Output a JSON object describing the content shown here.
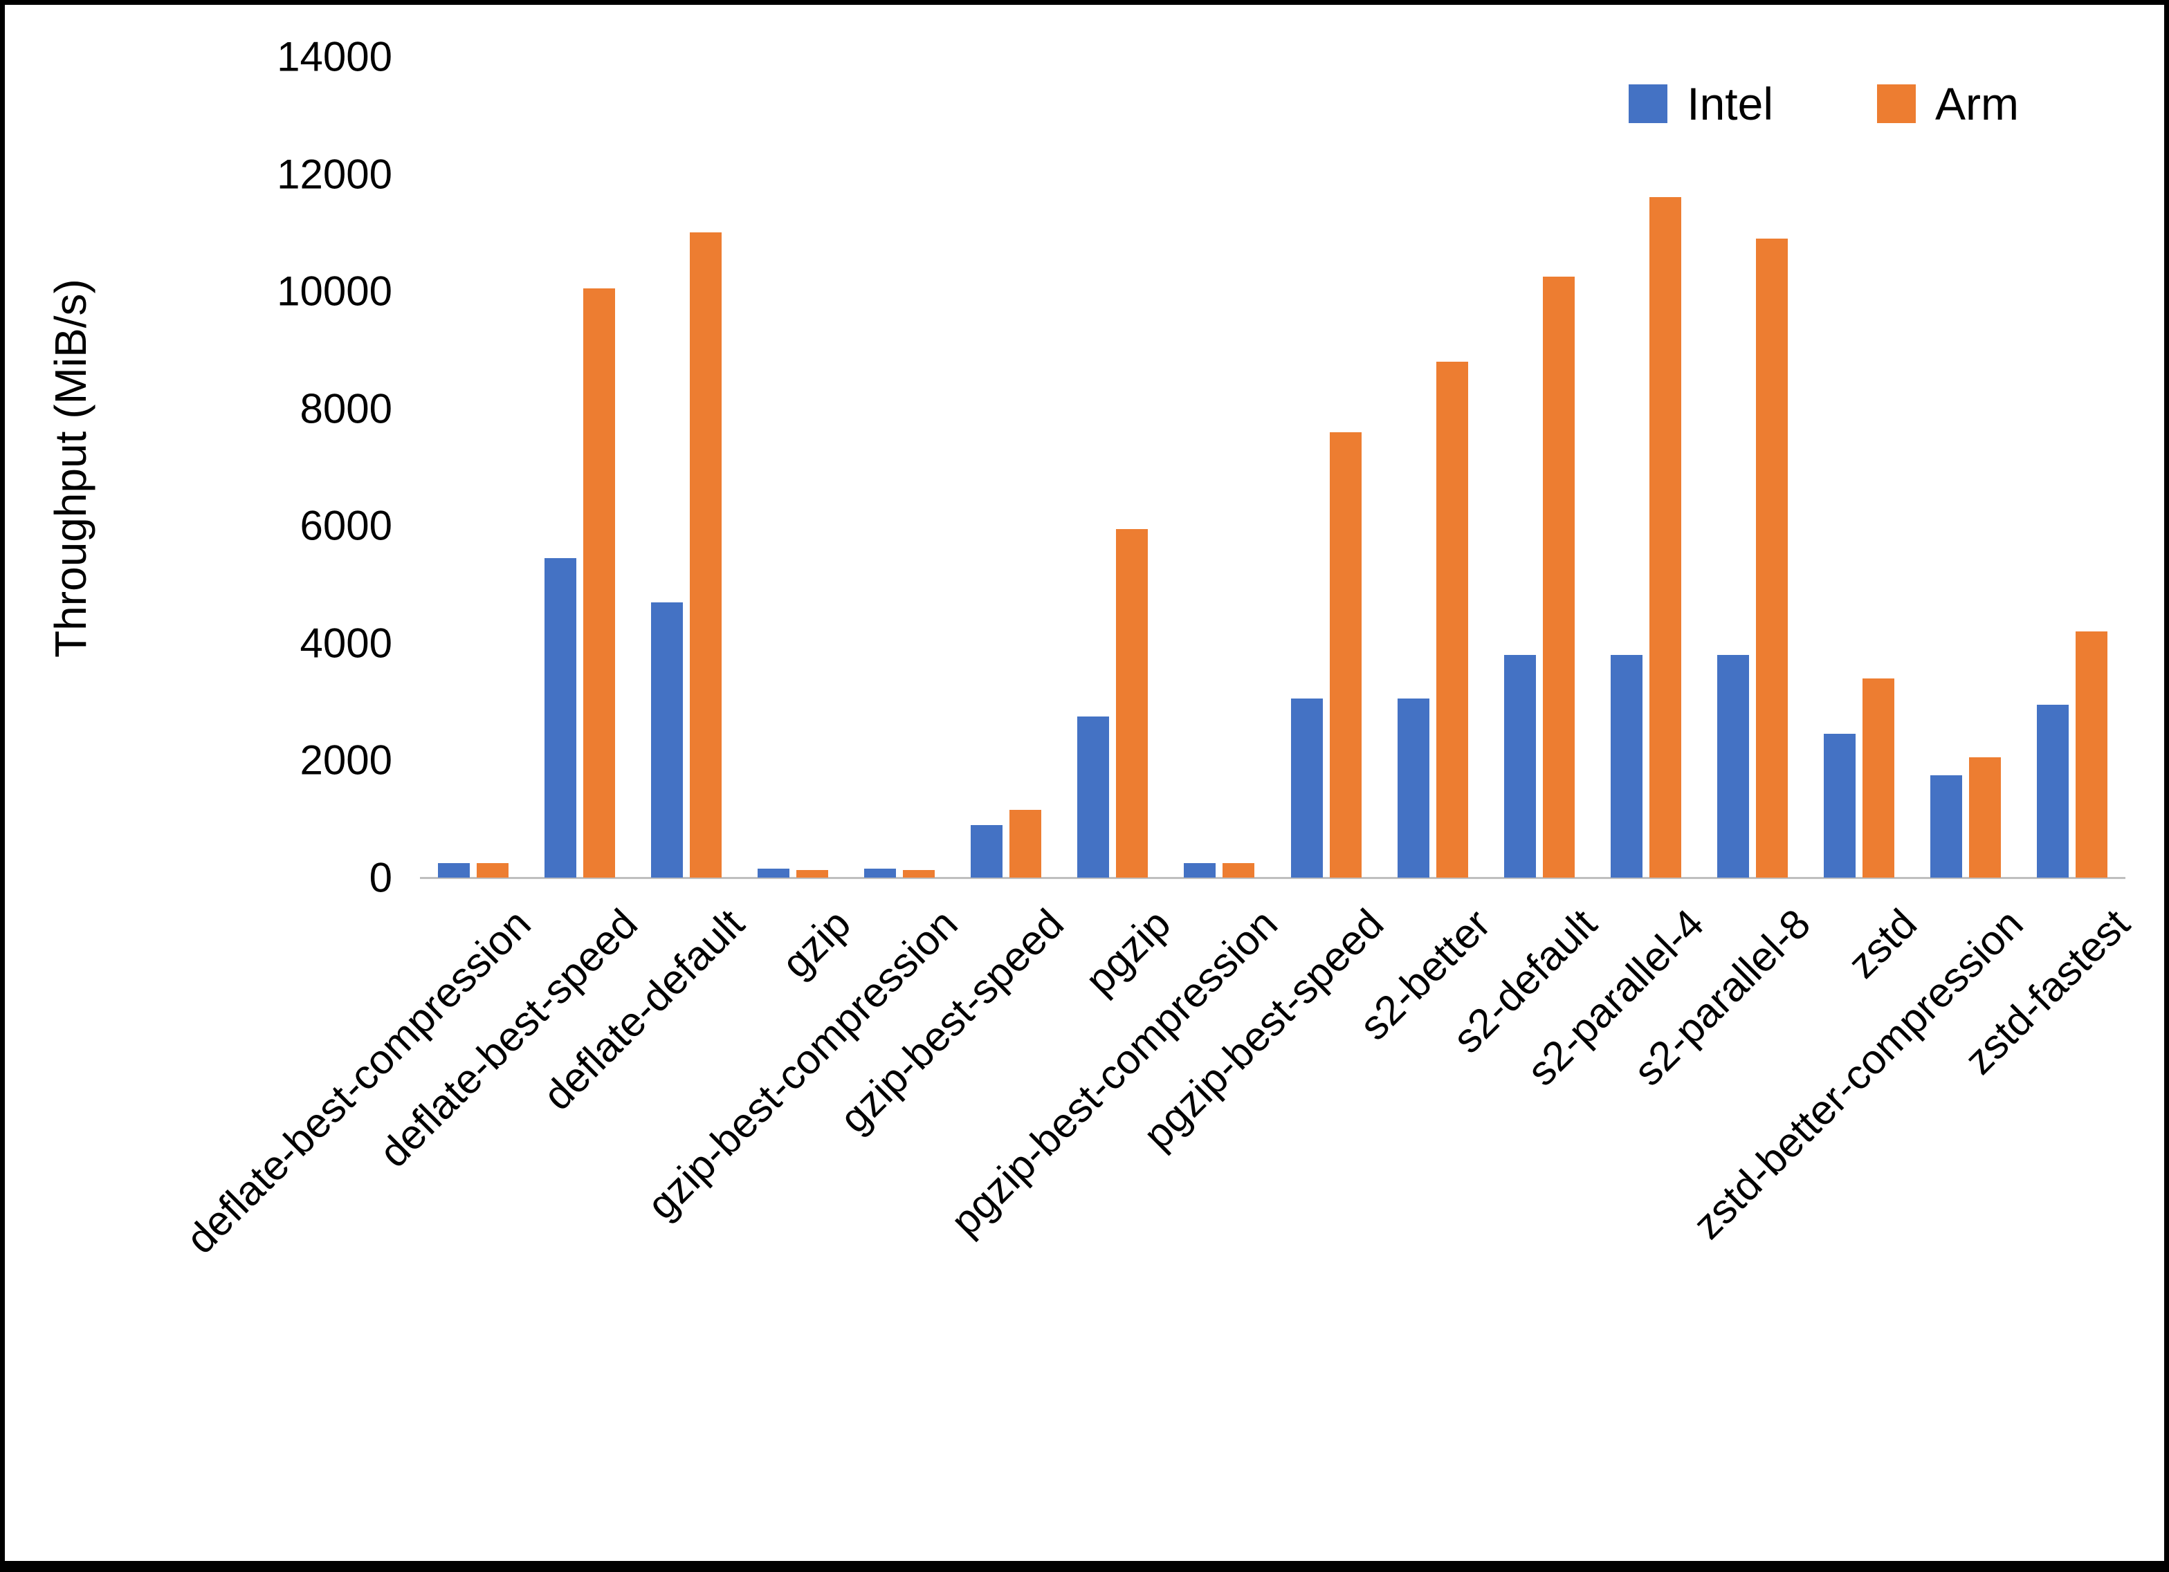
{
  "chart_data": {
    "type": "bar",
    "title": "",
    "xlabel": "",
    "ylabel": "Throughput (MiB/s)",
    "ylim": [
      0,
      14000
    ],
    "ytick_step": 2000,
    "grid": false,
    "legend_position": "top-right",
    "categories": [
      "deflate-best-compression",
      "deflate-best-speed",
      "deflate-default",
      "gzip",
      "gzip-best-compression",
      "gzip-best-speed",
      "pgzip",
      "pgzip-best-compression",
      "pgzip-best-speed",
      "s2-better",
      "s2-default",
      "s2-parallel-4",
      "s2-parallel-8",
      "zstd",
      "zstd-better-compression",
      "zstd-fastest"
    ],
    "series": [
      {
        "name": "Intel",
        "color": "#4472C4",
        "values": [
          250,
          5450,
          4700,
          150,
          150,
          900,
          2750,
          250,
          3050,
          3050,
          3800,
          3800,
          3800,
          2450,
          1750,
          2950
        ]
      },
      {
        "name": "Arm",
        "color": "#ED7D31",
        "values": [
          250,
          10050,
          11000,
          130,
          130,
          1150,
          5950,
          250,
          7600,
          8800,
          10250,
          11600,
          10900,
          3400,
          2050,
          4200
        ]
      }
    ]
  }
}
